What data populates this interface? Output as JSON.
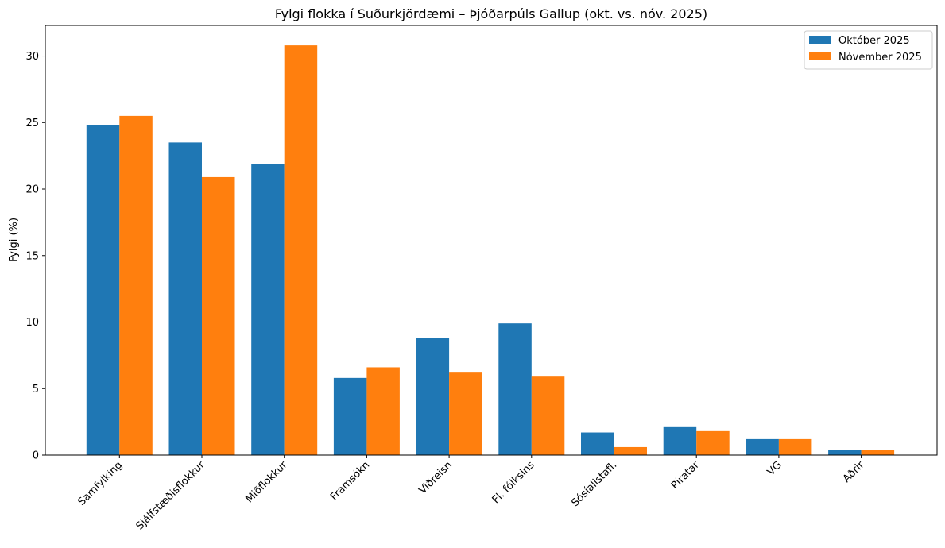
{
  "chart_data": {
    "type": "bar",
    "title": "Fylgi flokka í Suðurkjördæmi – Þjóðarpúls Gallup (okt. vs. nóv. 2025)",
    "xlabel": "",
    "ylabel": "Fylgi (%)",
    "ylim": [
      0,
      32.3
    ],
    "yticks": [
      0,
      5,
      10,
      15,
      20,
      25,
      30
    ],
    "grid": false,
    "legend_position": "top-right",
    "categories": [
      "Samfylking",
      "Sjálfstæðisflokkur",
      "Miðflokkur",
      "Framsókn",
      "Viðreisn",
      "Fl. fólksins",
      "Sósíalistafl.",
      "Píratar",
      "VG",
      "Aðrir"
    ],
    "series": [
      {
        "name": "Október 2025",
        "color": "#1f77b4",
        "values": [
          24.8,
          23.5,
          21.9,
          5.8,
          8.8,
          9.9,
          1.7,
          2.1,
          1.2,
          0.4
        ]
      },
      {
        "name": "Nóvember 2025",
        "color": "#ff7f0e",
        "values": [
          25.5,
          20.9,
          30.8,
          6.6,
          6.2,
          5.9,
          0.6,
          1.8,
          1.2,
          0.4
        ]
      }
    ]
  }
}
